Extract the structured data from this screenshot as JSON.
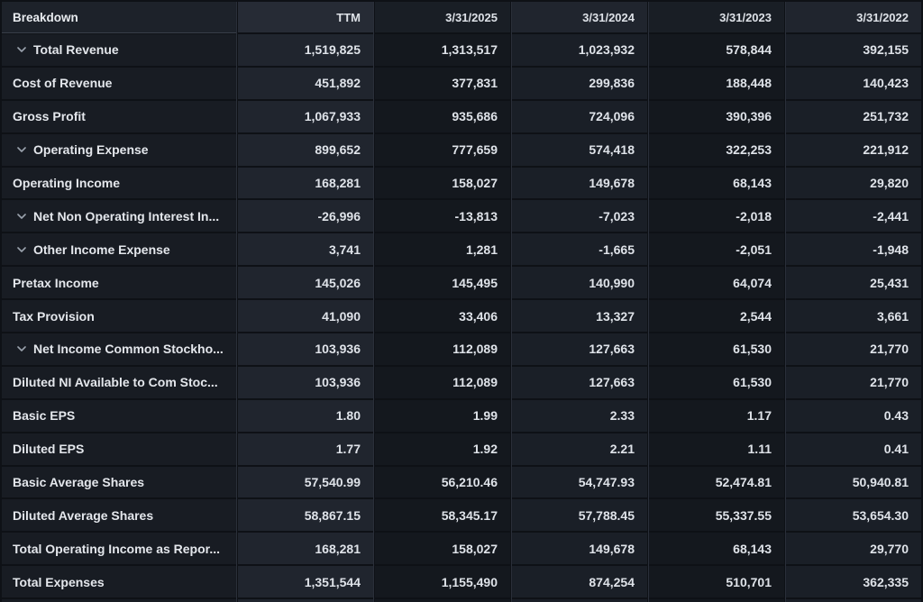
{
  "table": {
    "columns": [
      "Breakdown",
      "TTM",
      "3/31/2025",
      "3/31/2024",
      "3/31/2023",
      "3/31/2022"
    ],
    "rows": [
      {
        "label": "Total Revenue",
        "expandable": true,
        "values": [
          "1,519,825",
          "1,313,517",
          "1,023,932",
          "578,844",
          "392,155"
        ]
      },
      {
        "label": "Cost of Revenue",
        "expandable": false,
        "values": [
          "451,892",
          "377,831",
          "299,836",
          "188,448",
          "140,423"
        ]
      },
      {
        "label": "Gross Profit",
        "expandable": false,
        "values": [
          "1,067,933",
          "935,686",
          "724,096",
          "390,396",
          "251,732"
        ]
      },
      {
        "label": "Operating Expense",
        "expandable": true,
        "values": [
          "899,652",
          "777,659",
          "574,418",
          "322,253",
          "221,912"
        ]
      },
      {
        "label": "Operating Income",
        "expandable": false,
        "values": [
          "168,281",
          "158,027",
          "149,678",
          "68,143",
          "29,820"
        ]
      },
      {
        "label": "Net Non Operating Interest In...",
        "expandable": true,
        "values": [
          "-26,996",
          "-13,813",
          "-7,023",
          "-2,018",
          "-2,441"
        ]
      },
      {
        "label": "Other Income Expense",
        "expandable": true,
        "values": [
          "3,741",
          "1,281",
          "-1,665",
          "-2,051",
          "-1,948"
        ]
      },
      {
        "label": "Pretax Income",
        "expandable": false,
        "values": [
          "145,026",
          "145,495",
          "140,990",
          "64,074",
          "25,431"
        ]
      },
      {
        "label": "Tax Provision",
        "expandable": false,
        "values": [
          "41,090",
          "33,406",
          "13,327",
          "2,544",
          "3,661"
        ]
      },
      {
        "label": "Net Income Common Stockho...",
        "expandable": true,
        "values": [
          "103,936",
          "112,089",
          "127,663",
          "61,530",
          "21,770"
        ]
      },
      {
        "label": "Diluted NI Available to Com Stoc...",
        "expandable": false,
        "values": [
          "103,936",
          "112,089",
          "127,663",
          "61,530",
          "21,770"
        ]
      },
      {
        "label": "Basic EPS",
        "expandable": false,
        "values": [
          "1.80",
          "1.99",
          "2.33",
          "1.17",
          "0.43"
        ]
      },
      {
        "label": "Diluted EPS",
        "expandable": false,
        "values": [
          "1.77",
          "1.92",
          "2.21",
          "1.11",
          "0.41"
        ]
      },
      {
        "label": "Basic Average Shares",
        "expandable": false,
        "values": [
          "57,540.99",
          "56,210.46",
          "54,747.93",
          "52,474.81",
          "50,940.81"
        ]
      },
      {
        "label": "Diluted Average Shares",
        "expandable": false,
        "values": [
          "58,867.15",
          "58,345.17",
          "57,788.45",
          "55,337.55",
          "53,654.30"
        ]
      },
      {
        "label": "Total Operating Income as Repor...",
        "expandable": false,
        "values": [
          "168,281",
          "158,027",
          "149,678",
          "68,143",
          "29,770"
        ]
      },
      {
        "label": "Total Expenses",
        "expandable": false,
        "values": [
          "1,351,544",
          "1,155,490",
          "874,254",
          "510,701",
          "362,335"
        ]
      }
    ]
  },
  "icons": {
    "expand": "chevron-down-icon"
  },
  "colors": {
    "background": "#0e1116",
    "label_column": "#181c23",
    "ttm_column": "#20252e",
    "dark_column": "#14181e",
    "mid_column": "#1a1f27",
    "header_text": "#e9ecf0",
    "row_text": "#e4e7ec",
    "value_text": "#dfe3e9",
    "chevron": "#9aa2ad",
    "column_divider": "#2a2f39"
  }
}
